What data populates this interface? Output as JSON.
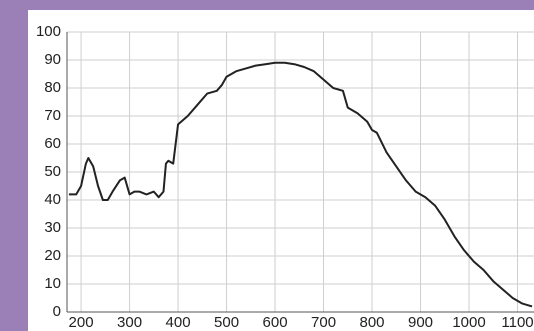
{
  "chart_data": {
    "type": "line",
    "x": [
      175,
      190,
      200,
      210,
      215,
      225,
      235,
      245,
      255,
      265,
      280,
      290,
      300,
      310,
      320,
      335,
      350,
      360,
      370,
      375,
      380,
      390,
      400,
      420,
      440,
      460,
      480,
      490,
      500,
      520,
      540,
      560,
      580,
      600,
      620,
      640,
      660,
      680,
      700,
      720,
      740,
      750,
      770,
      790,
      800,
      810,
      830,
      850,
      870,
      890,
      910,
      930,
      950,
      970,
      990,
      1010,
      1030,
      1050,
      1070,
      1090,
      1110,
      1130
    ],
    "series": [
      {
        "color": "#222222",
        "values": [
          42,
          42,
          45,
          53,
          55,
          52,
          45,
          40,
          40,
          43,
          47,
          48,
          42,
          43,
          43,
          42,
          43,
          41,
          43,
          53,
          54,
          53,
          67,
          70,
          74,
          78,
          79,
          81,
          84,
          86,
          87,
          88,
          88.5,
          89,
          89,
          88.5,
          87.5,
          86,
          83,
          80,
          79,
          73,
          71,
          68,
          65,
          64,
          57,
          52,
          47,
          43,
          41,
          38,
          33,
          27,
          22,
          18,
          15,
          11,
          8,
          5,
          3,
          2
        ]
      }
    ],
    "xlim": [
      171,
      1134
    ],
    "ylim": [
      0,
      100
    ],
    "xticks": [
      200,
      300,
      400,
      500,
      600,
      700,
      800,
      900,
      1000,
      1100
    ],
    "yticks": [
      0,
      10,
      20,
      30,
      40,
      50,
      60,
      70,
      80,
      90,
      100
    ],
    "grid": true
  }
}
